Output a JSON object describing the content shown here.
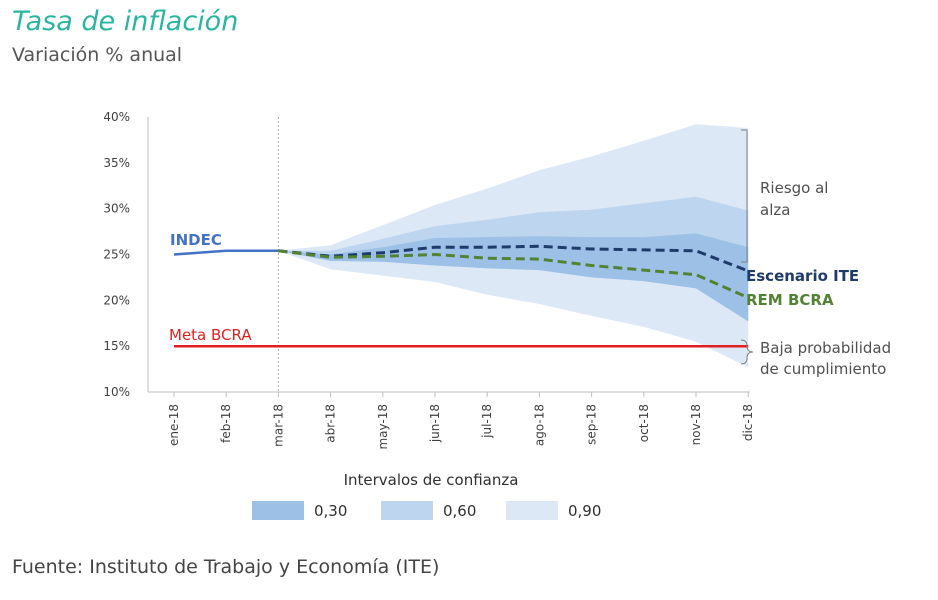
{
  "header": {
    "title": "Tasa de inflación",
    "subtitle": "Variación % anual"
  },
  "footer": {
    "source": "Fuente: Instituto de Trabajo y Economía (ITE)"
  },
  "chart_data": {
    "type": "line",
    "title": "Tasa de inflación",
    "subtitle": "Variación % anual",
    "categories": [
      "ene-18",
      "feb-18",
      "mar-18",
      "abr-18",
      "may-18",
      "jun-18",
      "jul-18",
      "ago-18",
      "sep-18",
      "oct-18",
      "nov-18",
      "dic-18"
    ],
    "ylim": [
      10,
      40
    ],
    "yticks": [
      10,
      15,
      20,
      25,
      30,
      35,
      40
    ],
    "ytick_labels": [
      "10%",
      "15%",
      "20%",
      "25%",
      "30%",
      "35%",
      "40%"
    ],
    "grid": false,
    "series": [
      {
        "name": "INDEC",
        "style": "solid",
        "color": "#4472c4",
        "values": [
          25.0,
          25.4,
          25.4,
          null,
          null,
          null,
          null,
          null,
          null,
          null,
          null,
          null
        ]
      },
      {
        "name": "Escenario ITE",
        "style": "dashed",
        "color": "#1f3b6b",
        "values": [
          null,
          null,
          25.4,
          24.8,
          25.2,
          25.8,
          25.8,
          25.9,
          25.6,
          25.5,
          25.4,
          23.2
        ]
      },
      {
        "name": "REM BCRA",
        "style": "dashed",
        "color": "#548235",
        "values": [
          null,
          null,
          25.4,
          24.7,
          24.8,
          25.0,
          24.6,
          24.5,
          23.8,
          23.3,
          22.8,
          20.3
        ]
      },
      {
        "name": "Meta BCRA",
        "style": "solid",
        "color": "#e02020",
        "values": [
          15,
          15,
          15,
          15,
          15,
          15,
          15,
          15,
          15,
          15,
          15,
          15
        ]
      }
    ],
    "bands": [
      {
        "level": "0,90",
        "color": "#dde8f6",
        "upper": [
          null,
          null,
          25.4,
          26.0,
          28.2,
          30.4,
          32.2,
          34.2,
          35.7,
          37.4,
          39.2,
          38.8
        ],
        "lower": [
          null,
          null,
          25.4,
          23.4,
          22.7,
          22.0,
          20.6,
          19.6,
          18.3,
          17.1,
          15.5,
          12.7
        ]
      },
      {
        "level": "0,60",
        "color": "#bdd5ee",
        "upper": [
          null,
          null,
          25.4,
          25.4,
          26.7,
          28.1,
          28.8,
          29.6,
          29.9,
          30.6,
          31.3,
          29.8
        ]
      },
      {
        "level": "0,30",
        "color": "#9dc1e6",
        "upper": [
          null,
          null,
          25.4,
          25.0,
          25.8,
          26.8,
          26.9,
          27.0,
          26.9,
          26.9,
          27.3,
          25.8
        ],
        "lower": [
          null,
          null,
          25.4,
          24.3,
          24.2,
          23.8,
          23.5,
          23.3,
          22.5,
          22.1,
          21.3,
          17.7
        ]
      }
    ],
    "series_labels": {
      "indec": "INDEC",
      "meta": "Meta BCRA",
      "ite": "Escenario ITE",
      "rem": "REM BCRA"
    },
    "annotations": {
      "upper_line1": "Riesgo al",
      "upper_line2": "alza",
      "lower_line1": "Baja probabilidad",
      "lower_line2": "de cumplimiento"
    },
    "legend": {
      "title": "Intervalos de confianza",
      "placement": "bottom",
      "items": [
        {
          "label": "0,30",
          "color": "#9dc1e6"
        },
        {
          "label": "0,60",
          "color": "#bdd5ee"
        },
        {
          "label": "0,90",
          "color": "#dde8f6"
        }
      ]
    }
  }
}
